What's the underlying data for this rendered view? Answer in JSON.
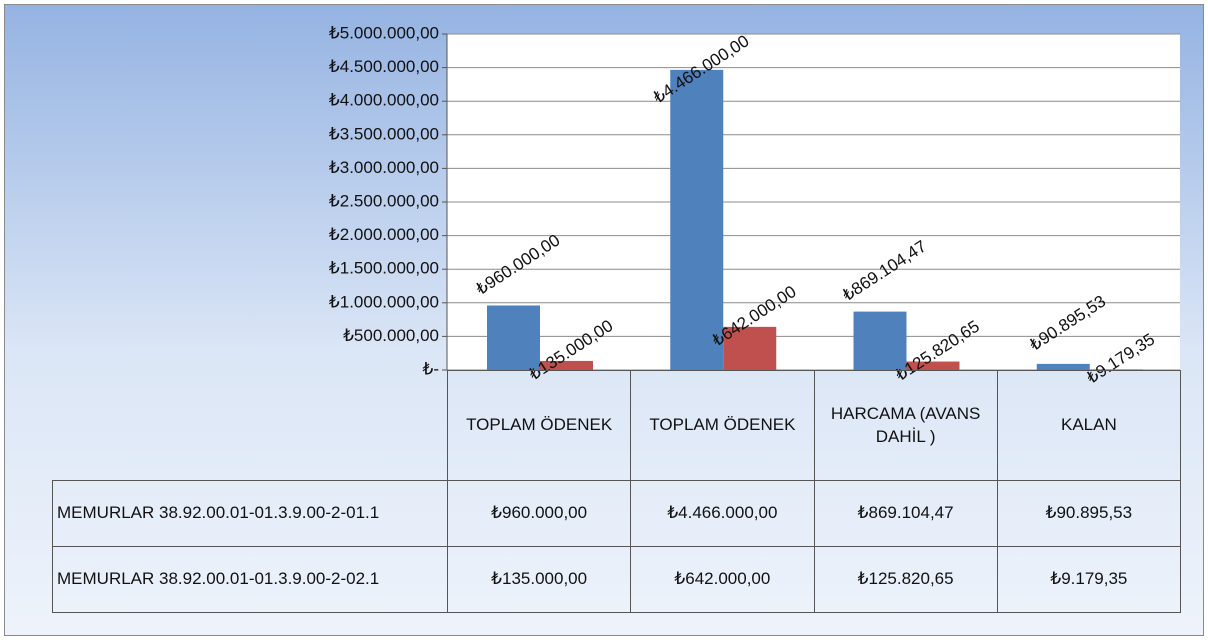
{
  "chart_data": {
    "type": "bar",
    "categories": [
      "TOPLAM ÖDENEK",
      "TOPLAM ÖDENEK",
      "HARCAMA (AVANS DAHİL )",
      "KALAN"
    ],
    "series": [
      {
        "name": "MEMURLAR 38.92.00.01-01.3.9.00-2-01.1",
        "color": "#4f81bd",
        "values": [
          960000,
          4466000,
          869104.47,
          90895.53
        ],
        "value_labels": [
          "₺960.000,00",
          "₺4.466.000,00",
          "₺869.104,47",
          "₺90.895,53"
        ]
      },
      {
        "name": "MEMURLAR 38.92.00.01-01.3.9.00-2-02.1",
        "color": "#c0504d",
        "values": [
          135000,
          642000,
          125820.65,
          9179.35
        ],
        "value_labels": [
          "₺135.000,00",
          "₺642.000,00",
          "₺125.820,65",
          "₺9.179,35"
        ]
      }
    ],
    "ylim": [
      0,
      5000000
    ],
    "yticks": [
      {
        "value": 0,
        "label": "₺-"
      },
      {
        "value": 500000,
        "label": "₺500.000,00"
      },
      {
        "value": 1000000,
        "label": "₺1.000.000,00"
      },
      {
        "value": 1500000,
        "label": "₺1.500.000,00"
      },
      {
        "value": 2000000,
        "label": "₺2.000.000,00"
      },
      {
        "value": 2500000,
        "label": "₺2.500.000,00"
      },
      {
        "value": 3000000,
        "label": "₺3.000.000,00"
      },
      {
        "value": 3500000,
        "label": "₺3.500.000,00"
      },
      {
        "value": 4000000,
        "label": "₺4.000.000,00"
      },
      {
        "value": 4500000,
        "label": "₺4.500.000,00"
      },
      {
        "value": 5000000,
        "label": "₺5.000.000,00"
      }
    ],
    "grid": true
  }
}
